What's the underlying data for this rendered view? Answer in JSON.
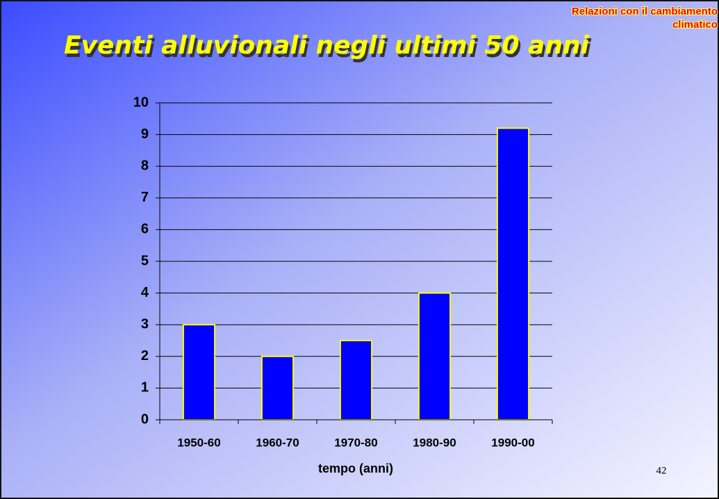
{
  "chart_data": {
    "type": "bar",
    "title": "Eventi alluvionali negli ultimi 50 anni",
    "annotations": [
      "Relazioni con il cambiamento",
      "climatico"
    ],
    "categories": [
      "1950-60",
      "1960-70",
      "1970-80",
      "1980-90",
      "1990-00"
    ],
    "values": [
      3,
      2,
      2.5,
      4,
      9.2
    ],
    "color": "#0000ff",
    "edge_color": "#ffff00",
    "xlabel": "tempo (anni)",
    "ylim": [
      0,
      10
    ],
    "yticks": [
      0,
      1,
      2,
      3,
      4,
      5,
      6,
      7,
      8,
      9,
      10
    ],
    "grid": true
  },
  "slide": {
    "page_number": "42"
  }
}
